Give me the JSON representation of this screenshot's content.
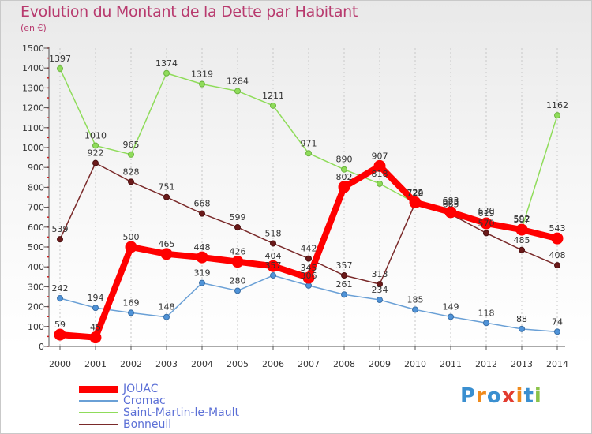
{
  "header": {
    "title": "Evolution du Montant de la Dette par Habitant",
    "subtitle": "(en €)"
  },
  "brand": {
    "text": "Proxiti"
  },
  "chart_data": {
    "type": "line",
    "x": [
      2000,
      2001,
      2002,
      2003,
      2004,
      2005,
      2006,
      2007,
      2008,
      2009,
      2010,
      2011,
      2012,
      2013,
      2014
    ],
    "ylim": [
      0,
      1500
    ],
    "yticks": [
      0,
      100,
      200,
      300,
      400,
      500,
      600,
      700,
      800,
      900,
      1000,
      1100,
      1200,
      1300,
      1400,
      1500
    ],
    "grid": "vertical-dotted",
    "legend_position": "bottom-left",
    "series": [
      {
        "name": "JOUAC",
        "color": "#ff0000",
        "values": [
          59,
          45,
          500,
          465,
          448,
          426,
          404,
          345,
          802,
          907,
          724,
          675,
          619,
          587,
          543
        ]
      },
      {
        "name": "Cromac",
        "color": "#6aa0d6",
        "values": [
          242,
          194,
          169,
          148,
          319,
          280,
          357,
          306,
          261,
          234,
          185,
          149,
          118,
          88,
          74
        ]
      },
      {
        "name": "Saint-Martin-le-Mault",
        "color": "#8fdc5a",
        "values": [
          1397,
          1010,
          965,
          1374,
          1319,
          1284,
          1211,
          971,
          890,
          818,
          722,
          683,
          630,
          592,
          1162
        ]
      },
      {
        "name": "Bonneuil",
        "color": "#7a2a2a",
        "values": [
          539,
          922,
          828,
          751,
          668,
          599,
          518,
          442,
          357,
          313,
          720,
          665,
          570,
          485,
          408
        ]
      }
    ]
  }
}
